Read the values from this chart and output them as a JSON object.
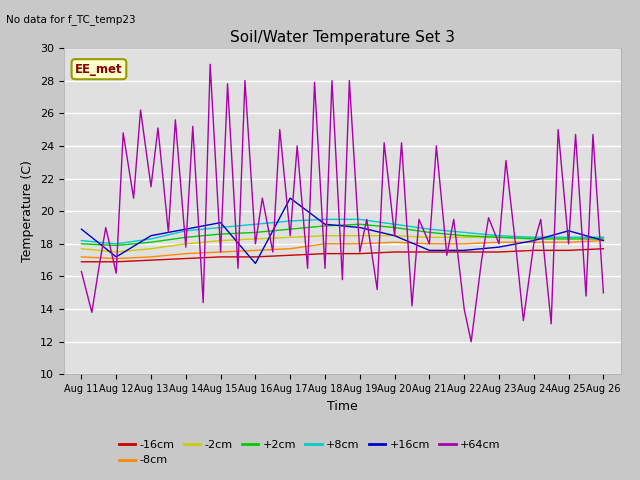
{
  "title": "Soil/Water Temperature Set 3",
  "subtitle": "No data for f_TC_temp23",
  "xlabel": "Time",
  "ylabel": "Temperature (C)",
  "annotation": "EE_met",
  "ylim": [
    10,
    30
  ],
  "xlim": [
    -0.5,
    15.5
  ],
  "xtick_labels": [
    "Aug 11",
    "Aug 12",
    "Aug 13",
    "Aug 14",
    "Aug 15",
    "Aug 16",
    "Aug 17",
    "Aug 18",
    "Aug 19",
    "Aug 20",
    "Aug 21",
    "Aug 22",
    "Aug 23",
    "Aug 24",
    "Aug 25",
    "Aug 26"
  ],
  "ytick_values": [
    10,
    12,
    14,
    16,
    18,
    20,
    22,
    24,
    26,
    28,
    30
  ],
  "background_color": "#c8c8c8",
  "plot_bg_color": "#e0e0e0",
  "legend_entries": [
    "-16cm",
    "-8cm",
    "-2cm",
    "+2cm",
    "+8cm",
    "+16cm",
    "+64cm"
  ],
  "legend_colors": [
    "#cc0000",
    "#ff8800",
    "#cccc00",
    "#00cc00",
    "#00cccc",
    "#0000cc",
    "#aa00aa"
  ],
  "series": {
    "m16cm": {
      "color": "#cc0000",
      "x": [
        0,
        1,
        2,
        3,
        4,
        5,
        6,
        7,
        8,
        9,
        10,
        11,
        12,
        13,
        14,
        15
      ],
      "y": [
        16.9,
        16.9,
        17.0,
        17.1,
        17.2,
        17.2,
        17.3,
        17.4,
        17.4,
        17.5,
        17.5,
        17.5,
        17.5,
        17.6,
        17.6,
        17.7
      ]
    },
    "m8cm": {
      "color": "#ff8800",
      "x": [
        0,
        1,
        2,
        3,
        4,
        5,
        6,
        7,
        8,
        9,
        10,
        11,
        12,
        13,
        14,
        15
      ],
      "y": [
        17.2,
        17.1,
        17.2,
        17.4,
        17.5,
        17.6,
        17.7,
        18.0,
        18.0,
        18.1,
        18.0,
        18.0,
        18.1,
        18.1,
        18.1,
        18.2
      ]
    },
    "m2cm": {
      "color": "#cccc00",
      "x": [
        0,
        1,
        2,
        3,
        4,
        5,
        6,
        7,
        8,
        9,
        10,
        11,
        12,
        13,
        14,
        15
      ],
      "y": [
        17.7,
        17.5,
        17.7,
        18.0,
        18.2,
        18.3,
        18.4,
        18.5,
        18.5,
        18.5,
        18.4,
        18.4,
        18.4,
        18.4,
        18.4,
        18.4
      ]
    },
    "p2cm": {
      "color": "#00cc00",
      "x": [
        0,
        1,
        2,
        3,
        4,
        5,
        6,
        7,
        8,
        9,
        10,
        11,
        12,
        13,
        14,
        15
      ],
      "y": [
        18.0,
        17.9,
        18.1,
        18.4,
        18.6,
        18.7,
        18.9,
        19.1,
        19.2,
        19.0,
        18.7,
        18.5,
        18.4,
        18.3,
        18.3,
        18.3
      ]
    },
    "p8cm": {
      "color": "#00cccc",
      "x": [
        0,
        1,
        2,
        3,
        4,
        5,
        6,
        7,
        8,
        9,
        10,
        11,
        12,
        13,
        14,
        15
      ],
      "y": [
        18.2,
        18.0,
        18.3,
        18.8,
        19.0,
        19.2,
        19.4,
        19.5,
        19.5,
        19.2,
        18.9,
        18.7,
        18.5,
        18.4,
        18.4,
        18.4
      ]
    },
    "p16cm": {
      "color": "#0000cc",
      "x": [
        0,
        1,
        2,
        3,
        4,
        5,
        6,
        7,
        8,
        9,
        10,
        11,
        12,
        13,
        14,
        15
      ],
      "y": [
        18.9,
        17.2,
        18.5,
        18.9,
        19.3,
        16.8,
        20.8,
        19.2,
        19.0,
        18.5,
        17.6,
        17.6,
        17.8,
        18.2,
        18.8,
        18.2
      ]
    },
    "p64cm": {
      "color": "#aa00aa",
      "x": [
        0.0,
        0.3,
        0.5,
        0.7,
        1.0,
        1.2,
        1.5,
        1.7,
        2.0,
        2.2,
        2.5,
        2.7,
        3.0,
        3.2,
        3.5,
        3.7,
        4.0,
        4.2,
        4.5,
        4.7,
        5.0,
        5.2,
        5.5,
        5.7,
        6.0,
        6.2,
        6.5,
        6.7,
        7.0,
        7.2,
        7.5,
        7.7,
        8.0,
        8.2,
        8.5,
        8.7,
        9.0,
        9.2,
        9.5,
        9.7,
        10.0,
        10.2,
        10.5,
        10.7,
        11.0,
        11.2,
        11.5,
        11.7,
        12.0,
        12.2,
        12.5,
        12.7,
        13.0,
        13.2,
        13.5,
        13.7,
        14.0,
        14.2,
        14.5,
        14.7,
        15.0
      ],
      "y": [
        16.3,
        13.8,
        16.5,
        19.0,
        16.2,
        24.8,
        20.8,
        26.2,
        21.5,
        25.1,
        18.7,
        25.6,
        17.8,
        25.2,
        14.4,
        29.0,
        17.5,
        27.8,
        16.5,
        28.0,
        18.0,
        20.8,
        17.5,
        25.0,
        18.5,
        24.0,
        16.5,
        27.9,
        16.5,
        28.0,
        15.8,
        28.0,
        17.5,
        19.5,
        15.2,
        24.2,
        18.5,
        24.2,
        14.2,
        19.5,
        18.0,
        24.0,
        17.3,
        19.5,
        14.0,
        12.0,
        17.0,
        19.6,
        18.0,
        23.1,
        17.5,
        13.3,
        18.0,
        19.5,
        13.1,
        25.0,
        18.0,
        24.7,
        14.8,
        24.7,
        15.0
      ]
    }
  }
}
